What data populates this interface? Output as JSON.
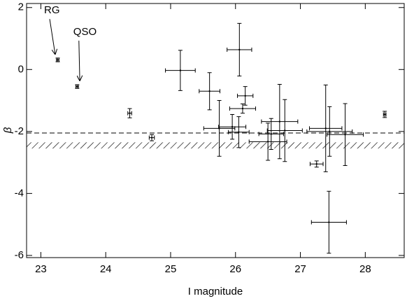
{
  "chart_data": {
    "type": "errorbar-scatter",
    "xlabel": "I magnitude",
    "ylabel": "β",
    "xlim": [
      22.78,
      28.6
    ],
    "ylim": [
      -6.07,
      2.13
    ],
    "xticks": [
      23,
      24,
      25,
      26,
      27,
      28
    ],
    "yticks": [
      -6,
      -4,
      -2,
      0,
      2
    ],
    "color": "#000000",
    "series": [
      {
        "x": [
          23.26,
          23.56,
          24.37,
          24.71,
          25.15,
          25.6,
          26.06,
          26.15,
          26.11,
          25.75,
          25.95,
          26.05,
          26.55,
          26.68,
          26.5,
          27.44,
          26.76,
          27.39,
          27.69,
          28.3,
          27.25,
          27.45
        ],
        "y": [
          0.31,
          -0.55,
          -1.41,
          -2.2,
          -0.03,
          -0.7,
          0.64,
          -0.85,
          -1.26,
          -1.9,
          -1.85,
          -2.02,
          -2.08,
          -1.68,
          -2.33,
          -4.93,
          -1.97,
          -1.9,
          -2.1,
          -1.45,
          -3.05,
          -2.0
        ],
        "xerr": [
          0.02,
          0.02,
          0.03,
          0.04,
          0.23,
          0.16,
          0.19,
          0.12,
          0.2,
          0.24,
          0.21,
          0.16,
          0.19,
          0.28,
          0.29,
          0.27,
          0.27,
          0.25,
          0.28,
          0.02,
          0.1,
          0.35
        ],
        "yerr": [
          0.06,
          0.06,
          0.15,
          0.1,
          0.65,
          0.6,
          0.85,
          0.3,
          0.15,
          0.9,
          0.4,
          0.5,
          0.5,
          1.2,
          0.6,
          1.0,
          1.0,
          1.4,
          1.0,
          0.1,
          0.1,
          0.8
        ]
      }
    ],
    "hlines": [
      {
        "y": -2.05,
        "style": "dashed"
      }
    ],
    "band": {
      "y": [
        -2.55,
        -2.35
      ]
    },
    "annotations": [
      {
        "text": "RG",
        "x": 23.05,
        "y": 1.9,
        "tx": 23.22,
        "ty": 0.5
      },
      {
        "text": "QSO",
        "x": 23.5,
        "y": 1.2,
        "tx": 23.6,
        "ty": -0.35
      }
    ]
  }
}
